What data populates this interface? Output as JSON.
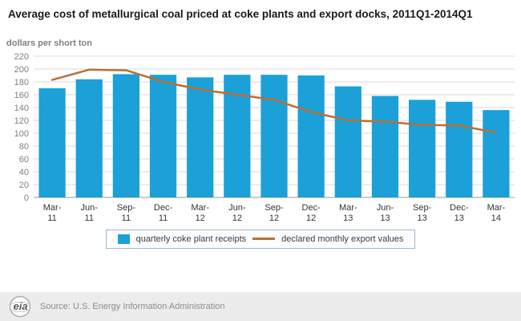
{
  "title": "Average cost of metallurgical coal priced at coke plants and export docks, 2011Q1-2014Q1",
  "ylabel": "dollars per short ton",
  "source": "Source: U.S. Energy Information Administration",
  "logo_text": "eia",
  "legend": {
    "bars": "quarterly coke plant receipts",
    "line": "declared monthly export values"
  },
  "colors": {
    "bar": "#1ba0d8",
    "line": "#b96f35",
    "grid": "#d9d9d9",
    "axis": "#999999",
    "ytick_text": "#7f7f7f",
    "xtick_text": "#333333"
  },
  "chart_data": {
    "type": "bar",
    "title": "Average cost of metallurgical coal priced at coke plants and export docks, 2011Q1-2014Q1",
    "xlabel": "",
    "ylabel": "dollars per short ton",
    "ylim": [
      0,
      220
    ],
    "yticks": [
      0,
      20,
      40,
      60,
      80,
      100,
      120,
      140,
      160,
      180,
      200,
      220
    ],
    "grid": true,
    "legend_position": "bottom",
    "categories": [
      "Mar-11",
      "Jun-11",
      "Sep-11",
      "Dec-11",
      "Mar-12",
      "Jun-12",
      "Sep-12",
      "Dec-12",
      "Mar-13",
      "Jun-13",
      "Sep-13",
      "Dec-13",
      "Mar-14"
    ],
    "series": [
      {
        "name": "quarterly coke plant receipts",
        "type": "bar",
        "values": [
          170,
          184,
          192,
          191,
          187,
          191,
          191,
          190,
          173,
          158,
          152,
          149,
          136
        ]
      },
      {
        "name": "declared monthly export values",
        "type": "line",
        "values": [
          183,
          199,
          198,
          180,
          168,
          160,
          152,
          133,
          120,
          118,
          113,
          112,
          101
        ]
      }
    ]
  }
}
